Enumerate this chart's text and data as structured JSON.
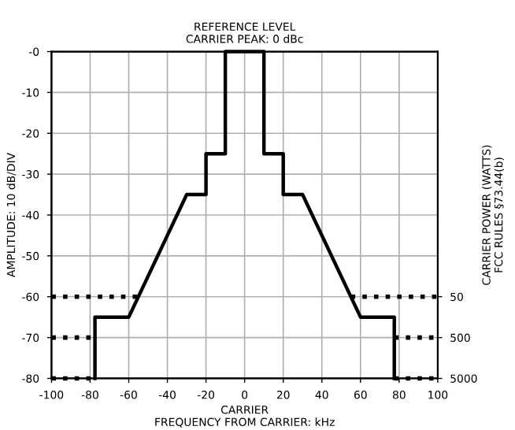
{
  "chart_data": {
    "type": "line",
    "title": "REFERENCE LEVEL\nCARRIER PEAK: 0 dBc",
    "xlabel": "CARRIER\nFREQUENCY FROM CARRIER: kHz",
    "ylabel": "AMPLITUDE: 10 dB/DIV",
    "y2label": "CARRIER POWER (WATTS)\nFCC RULES §73.44(b)",
    "series": [
      {
        "color": "#000000",
        "line_style": "solid",
        "x": [
          -77.5,
          -77.5,
          -60,
          -30,
          -20,
          -20,
          -10,
          -10,
          10,
          10,
          20,
          20,
          30,
          60,
          77.5,
          77.5
        ],
        "values": [
          -80,
          -65,
          -65,
          -35,
          -35,
          -25,
          -25,
          0,
          0,
          -25,
          -25,
          -35,
          -35,
          -65,
          -65,
          -80
        ]
      },
      {
        "color": "#000000",
        "line_style": "dotted",
        "x": [
          -100,
          -55,
          0,
          55,
          100
        ],
        "values": [
          -60,
          -60,
          null,
          -60,
          -60
        ]
      },
      {
        "color": "#000000",
        "line_style": "dotted",
        "x": [
          -100,
          -77.5,
          0,
          77.5,
          100
        ],
        "values": [
          -70,
          -70,
          null,
          -70,
          -70
        ]
      },
      {
        "color": "#000000",
        "line_style": "dotted",
        "x": [
          -100,
          -77.5,
          0,
          77.5,
          100
        ],
        "values": [
          -80,
          -80,
          null,
          -80,
          -80
        ]
      }
    ],
    "xlim": [
      -100,
      100
    ],
    "xticks": [
      -100,
      -80,
      -60,
      -40,
      -20,
      0,
      20,
      40,
      60,
      80,
      100
    ],
    "ylim": [
      -80,
      0
    ],
    "yticks": [
      {
        "value": 0,
        "label": "-0"
      },
      -10,
      -20,
      -30,
      -40,
      -50,
      -60,
      -70,
      -80
    ],
    "y2lim": [
      5000,
      5e-05
    ],
    "y2ticks": [
      50,
      500,
      5000
    ],
    "log": "y2",
    "grid": true,
    "marker": "none"
  }
}
